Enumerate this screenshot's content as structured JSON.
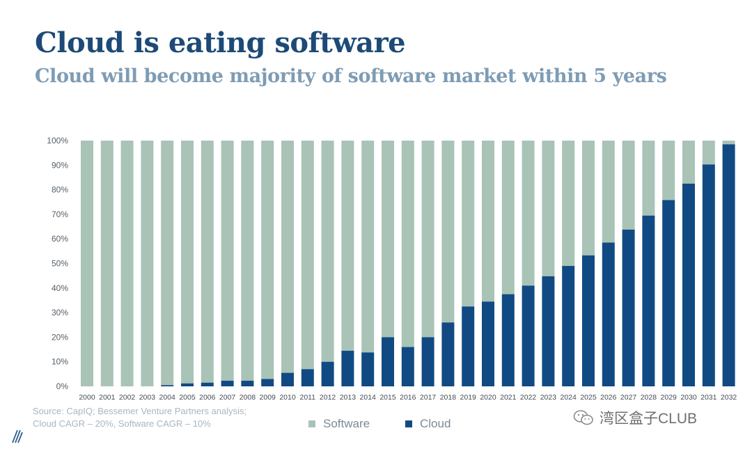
{
  "title": "Cloud is eating software",
  "subtitle": "Cloud will become majority of software market within 5 years",
  "source": {
    "line1": "Source: CapIQ; Bessemer Venture Partners analysis;",
    "line2": "Cloud CAGR – 20%, Software CAGR – 10%"
  },
  "legend": {
    "software": "Software",
    "cloud": "Cloud"
  },
  "watermark": "湾区盒子CLUB",
  "colors": {
    "software": "#a9c3b7",
    "cloud": "#114a83",
    "title": "#1d4a77",
    "subtitle": "#7e9cb4"
  },
  "chart_data": {
    "type": "bar",
    "stacked": true,
    "categories": [
      "2000",
      "2001",
      "2002",
      "2003",
      "2004",
      "2005",
      "2006",
      "2007",
      "2008",
      "2009",
      "2010",
      "2011",
      "2012",
      "2013",
      "2014",
      "2015",
      "2016",
      "2017",
      "2018",
      "2019",
      "2020",
      "2021",
      "2022",
      "2023",
      "2024",
      "2025",
      "2026",
      "2027",
      "2028",
      "2029",
      "2030",
      "2031",
      "2032"
    ],
    "series": [
      {
        "name": "Cloud",
        "values": [
          0,
          0,
          0,
          0,
          0.5,
          1.2,
          1.5,
          2.3,
          2.3,
          3,
          5.5,
          7,
          10,
          14.5,
          13.8,
          20,
          16,
          20,
          26,
          32.5,
          34.5,
          37.5,
          41,
          44.8,
          49,
          53.3,
          58.5,
          63.8,
          69.5,
          75.8,
          82.5,
          90.3,
          98.5
        ]
      },
      {
        "name": "Software",
        "values": [
          100,
          100,
          100,
          100,
          99.5,
          98.8,
          98.5,
          97.7,
          97.7,
          97,
          94.5,
          93,
          90,
          85.5,
          86.2,
          80,
          84,
          80,
          74,
          67.5,
          65.5,
          62.5,
          59,
          55.2,
          51,
          46.7,
          41.5,
          36.2,
          30.5,
          24.2,
          17.5,
          9.7,
          1.5
        ]
      }
    ],
    "yticks": [
      "0%",
      "10%",
      "20%",
      "30%",
      "40%",
      "50%",
      "60%",
      "70%",
      "80%",
      "90%",
      "100%"
    ],
    "ylim": [
      0,
      100
    ],
    "xlabel": "",
    "ylabel": "",
    "grid": false,
    "legend_position": "bottom"
  }
}
